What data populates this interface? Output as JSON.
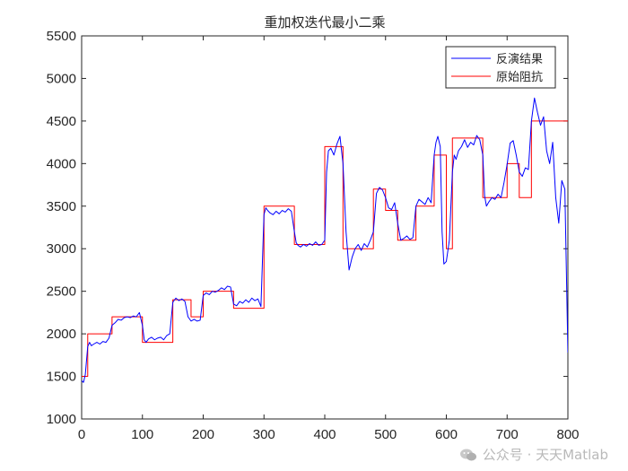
{
  "chart_data": {
    "type": "line",
    "title": "重加权迭代最小二乘",
    "xlabel": "",
    "ylabel": "",
    "xlim": [
      0,
      800
    ],
    "ylim": [
      1000,
      5500
    ],
    "xticks": [
      0,
      100,
      200,
      300,
      400,
      500,
      600,
      700,
      800
    ],
    "yticks": [
      1000,
      1500,
      2000,
      2500,
      3000,
      3500,
      4000,
      4500,
      5000,
      5500
    ],
    "grid": false,
    "legend_position": "top-right",
    "series": [
      {
        "name": "反演结果",
        "color": "#0000ff",
        "x": [
          0,
          3,
          6,
          10,
          13,
          16,
          20,
          25,
          30,
          35,
          40,
          45,
          50,
          55,
          60,
          65,
          70,
          75,
          80,
          85,
          90,
          95,
          100,
          103,
          106,
          110,
          115,
          120,
          125,
          130,
          135,
          140,
          145,
          150,
          155,
          160,
          165,
          170,
          175,
          180,
          185,
          190,
          195,
          200,
          205,
          210,
          215,
          220,
          225,
          230,
          235,
          240,
          245,
          250,
          255,
          260,
          265,
          270,
          275,
          280,
          285,
          290,
          295,
          300,
          303,
          306,
          310,
          315,
          320,
          325,
          330,
          335,
          340,
          345,
          350,
          353,
          356,
          360,
          365,
          370,
          375,
          380,
          385,
          390,
          395,
          400,
          403,
          406,
          410,
          415,
          420,
          425,
          430,
          435,
          440,
          445,
          450,
          455,
          460,
          465,
          470,
          475,
          480,
          485,
          490,
          495,
          500,
          505,
          510,
          515,
          520,
          525,
          530,
          535,
          540,
          545,
          550,
          555,
          560,
          565,
          570,
          575,
          580,
          583,
          586,
          590,
          593,
          596,
          600,
          605,
          610,
          613,
          616,
          620,
          625,
          630,
          635,
          640,
          645,
          650,
          655,
          660,
          663,
          666,
          670,
          675,
          680,
          685,
          690,
          695,
          700,
          705,
          710,
          715,
          720,
          725,
          730,
          735,
          740,
          745,
          750,
          755,
          760,
          765,
          770,
          775,
          780,
          785,
          790,
          795,
          800
        ],
        "y": [
          1450,
          1430,
          1520,
          1850,
          1900,
          1860,
          1880,
          1900,
          1880,
          1910,
          1900,
          1950,
          2100,
          2130,
          2170,
          2160,
          2190,
          2200,
          2190,
          2210,
          2200,
          2250,
          2100,
          1930,
          1900,
          1940,
          1960,
          1930,
          1950,
          1960,
          1930,
          1980,
          2000,
          2370,
          2420,
          2390,
          2410,
          2380,
          2200,
          2150,
          2170,
          2150,
          2160,
          2450,
          2480,
          2460,
          2500,
          2490,
          2510,
          2540,
          2520,
          2560,
          2550,
          2350,
          2330,
          2380,
          2360,
          2400,
          2370,
          2420,
          2390,
          2410,
          2320,
          3400,
          3480,
          3450,
          3420,
          3400,
          3440,
          3410,
          3450,
          3430,
          3470,
          3440,
          3200,
          3070,
          3040,
          3020,
          3050,
          3030,
          3060,
          3040,
          3080,
          3040,
          3050,
          3100,
          3900,
          4150,
          4180,
          4100,
          4230,
          4320,
          4000,
          3200,
          2750,
          2900,
          3000,
          3050,
          2980,
          3060,
          3020,
          3100,
          3200,
          3650,
          3720,
          3690,
          3600,
          3480,
          3460,
          3540,
          3300,
          3100,
          3120,
          3150,
          3110,
          3130,
          3500,
          3580,
          3550,
          3520,
          3600,
          3540,
          4100,
          4250,
          4320,
          4200,
          3200,
          2820,
          2850,
          3100,
          3900,
          4100,
          4050,
          4150,
          4200,
          4280,
          4190,
          4250,
          4220,
          4330,
          4280,
          4100,
          3620,
          3500,
          3550,
          3600,
          3580,
          3640,
          3600,
          3780,
          3990,
          4240,
          4270,
          4100,
          3900,
          3850,
          3950,
          3930,
          4500,
          4770,
          4600,
          4450,
          4550,
          4150,
          4000,
          4250,
          3600,
          3300,
          3800,
          3700,
          1780
        ]
      },
      {
        "name": "原始阻抗",
        "color": "#ff0000",
        "x": [
          0,
          10,
          10,
          50,
          50,
          100,
          100,
          150,
          150,
          180,
          180,
          200,
          200,
          250,
          250,
          300,
          300,
          350,
          350,
          400,
          400,
          430,
          430,
          480,
          480,
          500,
          500,
          520,
          520,
          550,
          550,
          580,
          580,
          600,
          600,
          610,
          610,
          660,
          660,
          700,
          700,
          720,
          720,
          740,
          740,
          800
        ],
        "y": [
          1500,
          1500,
          2000,
          2000,
          2200,
          2200,
          1900,
          1900,
          2400,
          2400,
          2200,
          2200,
          2500,
          2500,
          2300,
          2300,
          3500,
          3500,
          3050,
          3050,
          4200,
          4200,
          3000,
          3000,
          3700,
          3700,
          3450,
          3450,
          3100,
          3100,
          3500,
          3500,
          4100,
          4100,
          3000,
          3000,
          4300,
          4300,
          3600,
          3600,
          4000,
          4000,
          3600,
          3600,
          4500,
          4500
        ]
      }
    ]
  },
  "watermark": {
    "text": "公众号 · 天天Matlab"
  }
}
